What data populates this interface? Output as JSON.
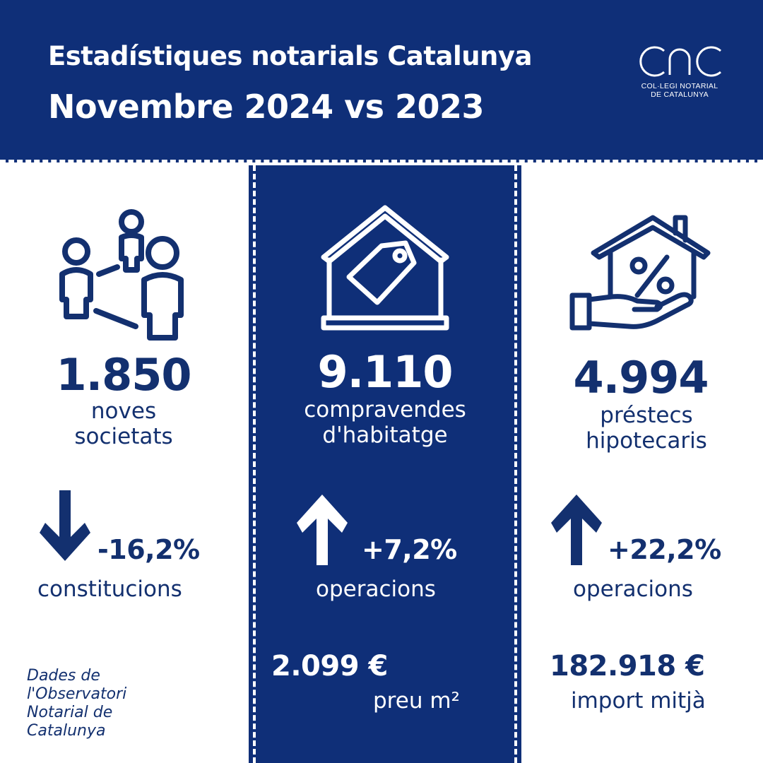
{
  "header": {
    "title_line1": "Estadístiques notarials Catalunya",
    "title_line2": "Novembre 2024 vs 2023",
    "logo_text_line1": "COL·LEGI NOTARIAL",
    "logo_text_line2": "DE CATALUNYA"
  },
  "columns": [
    {
      "icon": "people-network-icon",
      "value": "1.850",
      "label_line1": "noves",
      "label_line2": "societats",
      "trend": "down",
      "change": "-16,2%",
      "change_label": "constitucions"
    },
    {
      "icon": "house-price-tag-icon",
      "value": "9.110",
      "label_line1": "compravendes",
      "label_line2": "d'habitatge",
      "trend": "up",
      "change": "+7,2%",
      "change_label": "operacions",
      "extra_value": "2.099 €",
      "extra_label": "preu m²"
    },
    {
      "icon": "house-percent-hand-icon",
      "value": "4.994",
      "label_line1": "préstecs",
      "label_line2": "hipotecaris",
      "trend": "up",
      "change": "+22,2%",
      "change_label": "operacions",
      "extra_value": "182.918 €",
      "extra_label": "import mitjà"
    }
  ],
  "source": {
    "line1": "Dades de",
    "line2": "l'Observatori",
    "line3": "Notarial de",
    "line4": "Catalunya"
  },
  "colors": {
    "navy": "#0f2f78",
    "text_navy": "#13306f",
    "white": "#ffffff"
  }
}
